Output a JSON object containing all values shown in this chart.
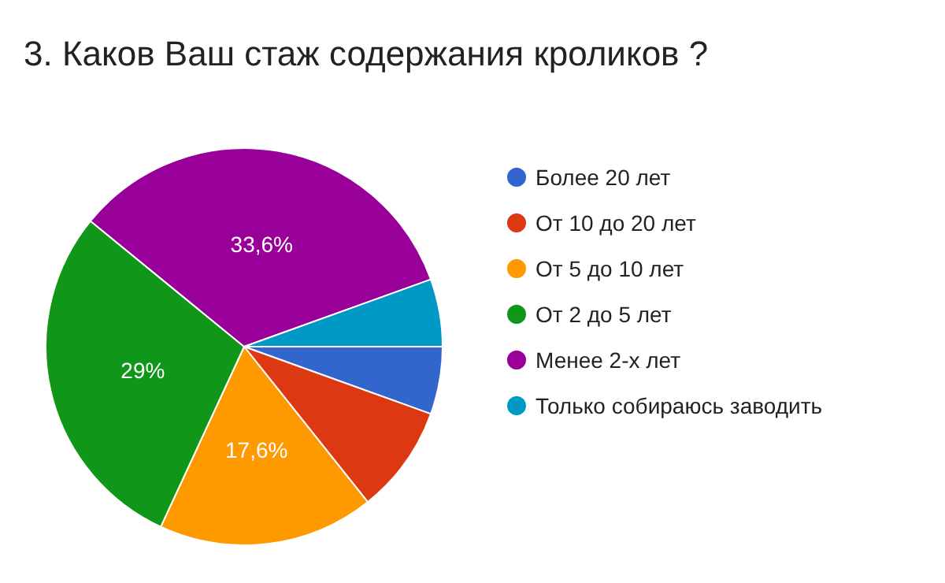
{
  "chart_data": {
    "type": "pie",
    "title": "3. Каков Ваш стаж содержания кроликов ?",
    "categories": [
      "Более 20 лет",
      "От 10 до 20 лет",
      "От 5 до 10 лет",
      "От 2 до 5 лет",
      "Менее 2-х лет",
      "Только собираюсь заводить"
    ],
    "values": [
      5.5,
      8.8,
      17.6,
      29,
      33.6,
      5.5
    ],
    "colors": [
      "#3366cc",
      "#dc3912",
      "#ff9900",
      "#109618",
      "#990099",
      "#0099c6"
    ],
    "value_labels": [
      null,
      null,
      "17,6%",
      "29%",
      "33,6%",
      null
    ],
    "legend": "right"
  }
}
